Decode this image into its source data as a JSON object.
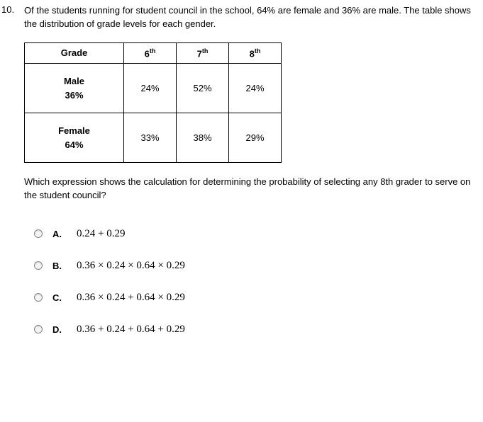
{
  "question": {
    "number": "10.",
    "text": "Of the students running for student council in the school, 64% are female and 36% are male.  The table shows the distribution of grade levels for each gender."
  },
  "table": {
    "grade_header": "Grade",
    "grades": [
      {
        "num": "6",
        "suf": "th"
      },
      {
        "num": "7",
        "suf": "th"
      },
      {
        "num": "8",
        "suf": "th"
      }
    ],
    "rows": [
      {
        "label": "Male",
        "sub": "36%",
        "values": [
          "24%",
          "52%",
          "24%"
        ]
      },
      {
        "label": "Female",
        "sub": "64%",
        "values": [
          "33%",
          "38%",
          "29%"
        ]
      }
    ]
  },
  "prompt": "Which expression shows the calculation for determining the probability of selecting any 8th grader to serve on the student council?",
  "choices": [
    {
      "letter": "A.",
      "expr": "0.24 + 0.29"
    },
    {
      "letter": "B.",
      "expr": "0.36 × 0.24 × 0.64 × 0.29"
    },
    {
      "letter": "C.",
      "expr": "0.36 × 0.24 + 0.64 × 0.29"
    },
    {
      "letter": "D.",
      "expr": "0.36 + 0.24 + 0.64 + 0.29"
    }
  ]
}
